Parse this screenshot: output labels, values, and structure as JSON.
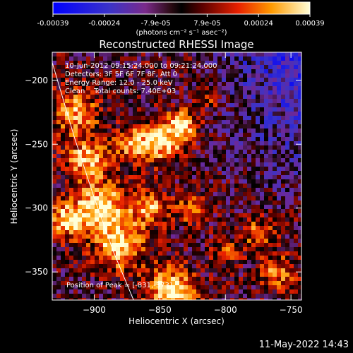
{
  "chart_data": {
    "type": "heatmap",
    "title": "Reconstructed RHESSI Image",
    "xlabel": "Heliocentric X (arcsec)",
    "ylabel": "Heliocentric Y (arcsec)",
    "xlim": [
      -932,
      -742
    ],
    "ylim": [
      -372,
      -178
    ],
    "x_ticks": [
      -900,
      -850,
      -800,
      -750
    ],
    "y_ticks": [
      -200,
      -250,
      -300,
      -350
    ],
    "colorbar": {
      "range": [
        -0.00039,
        0.00039
      ],
      "ticks": [
        "-0.00039",
        "-0.00024",
        "-7.9e-05",
        "7.9e-05",
        "0.00024",
        "0.00039"
      ],
      "unit_label": "(photons cm⁻² s⁻¹ asec⁻²)"
    },
    "info_lines": [
      "10-Jun-2012 09:15:24.000 to 09:21:24.000",
      "Detectors: 3F 5F 6F 7F 8F, Att 0",
      "Energy Range: 12.0 - 25.0 keV",
      "Clean    Total counts: 7.40E+03"
    ],
    "peak_text": "Position of Peak = [-831,-373]",
    "limb_curve": [
      [
        -932,
        -186
      ],
      [
        -915,
        -245
      ],
      [
        -900,
        -292
      ],
      [
        -885,
        -335
      ],
      [
        -870,
        -372
      ]
    ],
    "colors": {
      "background": "#000000",
      "text": "#ffffff"
    }
  },
  "footer": {
    "timestamp": "11-May-2022 14:43"
  }
}
